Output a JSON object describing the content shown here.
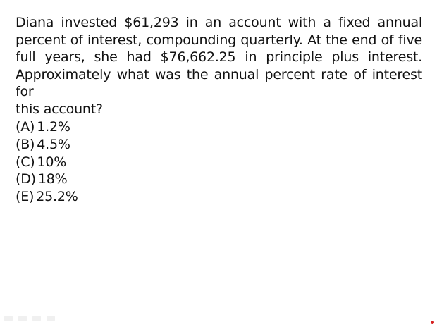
{
  "question": {
    "lines": [
      "Diana invested $61,293 in an account with a fixed annual",
      "percent of interest, compounding quarterly.  At the end of five",
      "full years, she had $76,662.25 in principle plus interest.",
      "Approximately what was the annual percent rate of interest for",
      "this account?"
    ]
  },
  "choices": [
    {
      "letter": "(A)",
      "value": "1.2%"
    },
    {
      "letter": "(B)",
      "value": "4.5%"
    },
    {
      "letter": "(C)",
      "value": "10%"
    },
    {
      "letter": "(D)",
      "value": "18%"
    },
    {
      "letter": "(E)",
      "value": "25.2%"
    }
  ],
  "colors": {
    "text": "#111111",
    "background": "#ffffff",
    "pointer": "#d62020"
  }
}
